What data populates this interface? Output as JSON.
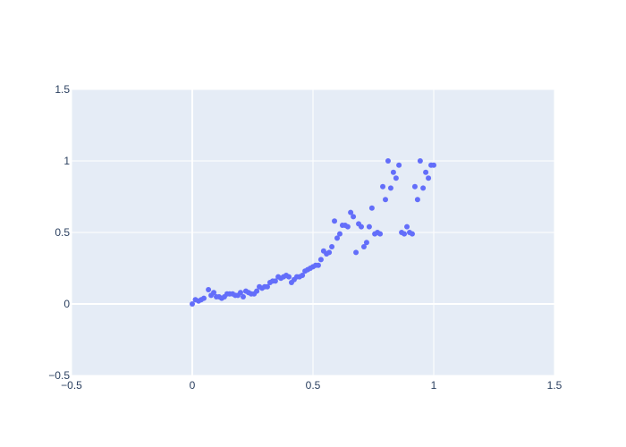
{
  "chart_data": {
    "type": "scatter",
    "title": "",
    "xlabel": "",
    "ylabel": "",
    "xlim": [
      -0.5,
      1.5
    ],
    "ylim": [
      -0.5,
      1.5
    ],
    "x_ticks": [
      -0.5,
      0,
      0.5,
      1,
      1.5
    ],
    "y_ticks": [
      -0.5,
      0,
      0.5,
      1,
      1.5
    ],
    "x_tick_labels": [
      "−0.5",
      "0",
      "0.5",
      "1",
      "1.5"
    ],
    "y_tick_labels": [
      "−0.5",
      "0",
      "0.5",
      "1",
      "1.5"
    ],
    "grid": true,
    "legend": false,
    "colors": {
      "plot_bg": "#E5ECF6",
      "grid": "#ffffff",
      "marker": "#636EFA",
      "text": "#2a3f5f"
    },
    "series": [
      {
        "x": [
          0.0,
          0.013,
          0.026,
          0.037,
          0.048,
          0.067,
          0.078,
          0.089,
          0.1,
          0.111,
          0.122,
          0.133,
          0.144,
          0.155,
          0.167,
          0.178,
          0.189,
          0.2,
          0.211,
          0.222,
          0.233,
          0.244,
          0.256,
          0.267,
          0.278,
          0.289,
          0.3,
          0.311,
          0.322,
          0.333,
          0.344,
          0.356,
          0.367,
          0.378,
          0.389,
          0.4,
          0.411,
          0.422,
          0.433,
          0.444,
          0.456,
          0.467,
          0.478,
          0.489,
          0.5,
          0.511,
          0.522,
          0.533,
          0.544,
          0.556,
          0.567,
          0.578,
          0.589,
          0.6,
          0.611,
          0.622,
          0.633,
          0.644,
          0.656,
          0.667,
          0.678,
          0.689,
          0.7,
          0.711,
          0.722,
          0.733,
          0.744,
          0.756,
          0.767,
          0.778,
          0.789,
          0.8,
          0.811,
          0.822,
          0.833,
          0.844,
          0.856,
          0.867,
          0.878,
          0.889,
          0.9,
          0.911,
          0.922,
          0.933,
          0.944,
          0.956,
          0.967,
          0.978,
          0.989,
          1.0
        ],
        "y": [
          0.0,
          0.03,
          0.02,
          0.03,
          0.04,
          0.1,
          0.06,
          0.08,
          0.05,
          0.05,
          0.04,
          0.05,
          0.07,
          0.07,
          0.07,
          0.06,
          0.06,
          0.08,
          0.05,
          0.09,
          0.08,
          0.07,
          0.07,
          0.09,
          0.12,
          0.11,
          0.12,
          0.12,
          0.15,
          0.16,
          0.16,
          0.19,
          0.18,
          0.19,
          0.2,
          0.19,
          0.15,
          0.17,
          0.19,
          0.19,
          0.2,
          0.23,
          0.24,
          0.25,
          0.26,
          0.27,
          0.27,
          0.31,
          0.37,
          0.35,
          0.36,
          0.4,
          0.58,
          0.46,
          0.49,
          0.55,
          0.55,
          0.54,
          0.64,
          0.61,
          0.36,
          0.56,
          0.54,
          0.4,
          0.43,
          0.54,
          0.67,
          0.49,
          0.5,
          0.49,
          0.82,
          0.73,
          1.0,
          0.81,
          0.92,
          0.88,
          0.97,
          0.5,
          0.49,
          0.54,
          0.5,
          0.49,
          0.82,
          0.73,
          1.0,
          0.81,
          0.92,
          0.88,
          0.97,
          0.97
        ]
      }
    ]
  }
}
